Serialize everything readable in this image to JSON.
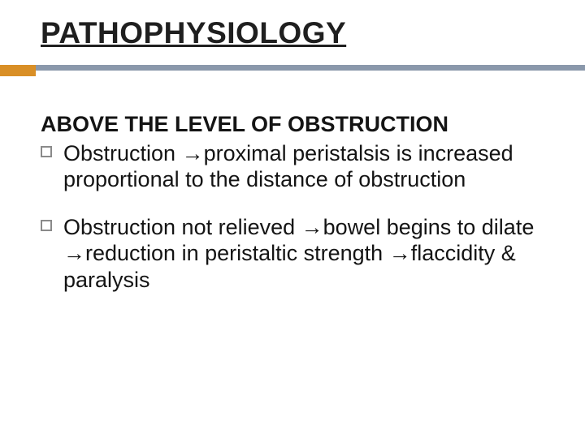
{
  "title": {
    "text": "PATHOPHYSIOLOGY",
    "fontsize": 37,
    "color": "#1f1f1f"
  },
  "rule": {
    "accent_color": "#d98f26",
    "accent_width": 44,
    "accent_height": 14,
    "main_color": "#8a98ab",
    "main_height": 7,
    "main_width_remaining": 676
  },
  "subheading": {
    "text": "ABOVE THE LEVEL OF OBSTRUCTION",
    "fontsize": 27,
    "color": "#141414"
  },
  "body_fontsize": 27,
  "body_color": "#141414",
  "bullet_marker_border_color": "#8a8a8a",
  "arrow_glyph": "→",
  "bullets": [
    {
      "segments": [
        "Obstruction ",
        "→",
        "proximal peristalsis is increased proportional to the distance of obstruction"
      ]
    },
    {
      "segments": [
        "Obstruction not relieved ",
        "→",
        "bowel begins to dilate ",
        "→",
        "reduction in peristaltic strength ",
        "→",
        "flaccidity & paralysis"
      ]
    }
  ]
}
